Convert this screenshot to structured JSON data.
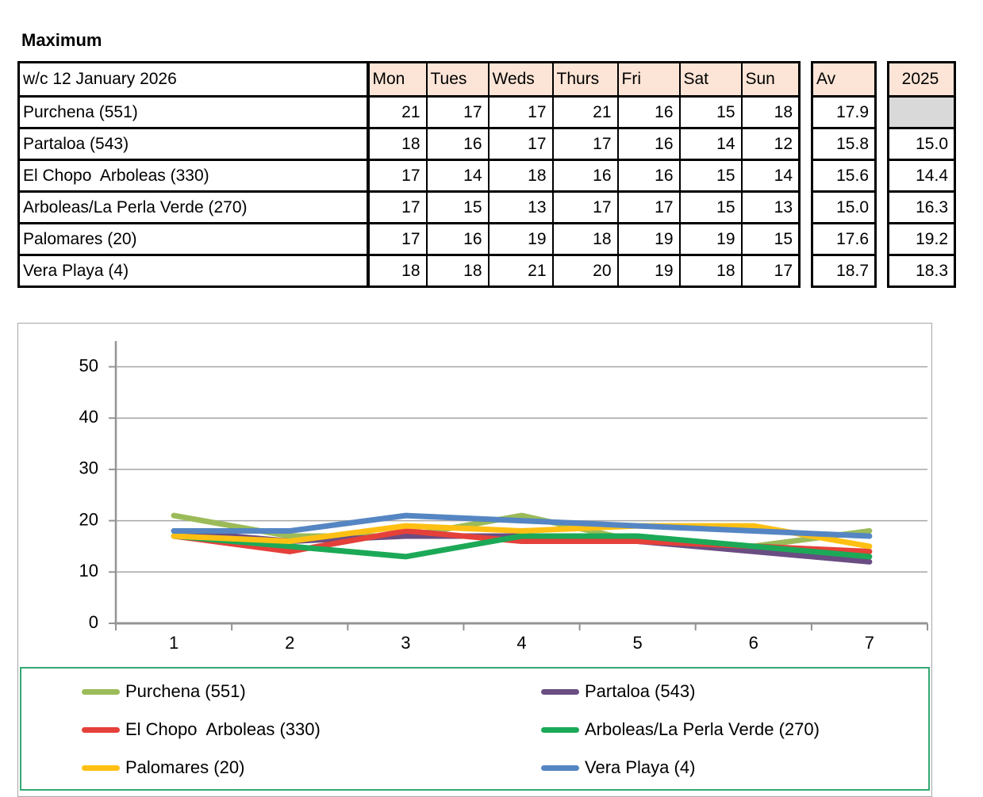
{
  "title": "Maximum",
  "table": {
    "week_label": "w/c 12 January 2026",
    "day_headers": [
      "Mon",
      "Tues",
      "Weds",
      "Thurs",
      "Fri",
      "Sat",
      "Sun"
    ],
    "av_header": "Av",
    "year_header": "2025",
    "rows": [
      {
        "name": "Purchena (551)",
        "values": [
          21,
          17,
          17,
          21,
          16,
          15,
          18
        ],
        "av": "17.9",
        "prev": ""
      },
      {
        "name": "Partaloa (543)",
        "values": [
          18,
          16,
          17,
          17,
          16,
          14,
          12
        ],
        "av": "15.8",
        "prev": "15.0"
      },
      {
        "name": "El Chopo  Arboleas (330)",
        "values": [
          17,
          14,
          18,
          16,
          16,
          15,
          14
        ],
        "av": "15.6",
        "prev": "14.4"
      },
      {
        "name": "Arboleas/La Perla Verde (270)",
        "values": [
          17,
          15,
          13,
          17,
          17,
          15,
          13
        ],
        "av": "15.0",
        "prev": "16.3"
      },
      {
        "name": "Palomares (20)",
        "values": [
          17,
          16,
          19,
          18,
          19,
          19,
          15
        ],
        "av": "17.6",
        "prev": "19.2"
      },
      {
        "name": "Vera Playa (4)",
        "values": [
          18,
          18,
          21,
          20,
          19,
          18,
          17
        ],
        "av": "18.7",
        "prev": "18.3"
      }
    ]
  },
  "chart_data": {
    "type": "line",
    "x": [
      1,
      2,
      3,
      4,
      5,
      6,
      7
    ],
    "series": [
      {
        "name": "Purchena (551)",
        "color": "#9BBB59",
        "values": [
          21,
          17,
          17,
          21,
          16,
          15,
          18
        ]
      },
      {
        "name": "Partaloa (543)",
        "color": "#6A4D82",
        "values": [
          18,
          16,
          17,
          17,
          16,
          14,
          12
        ]
      },
      {
        "name": "El Chopo  Arboleas (330)",
        "color": "#E5403A",
        "values": [
          17,
          14,
          18,
          16,
          16,
          15,
          14
        ]
      },
      {
        "name": "Arboleas/La Perla Verde (270)",
        "color": "#1CA957",
        "values": [
          17,
          15,
          13,
          17,
          17,
          15,
          13
        ]
      },
      {
        "name": "Palomares (20)",
        "color": "#FFC013",
        "values": [
          17,
          16,
          19,
          18,
          19,
          19,
          15
        ]
      },
      {
        "name": "Vera Playa (4)",
        "color": "#5586C3",
        "values": [
          18,
          18,
          21,
          20,
          19,
          18,
          17
        ]
      }
    ],
    "yticks": [
      0,
      10,
      20,
      30,
      40,
      50
    ],
    "ylim": [
      0,
      55
    ],
    "xlabel": "",
    "ylabel": "",
    "grid": true,
    "legend_position": "bottom"
  },
  "colors": {
    "header_fill": "#FCE4D6",
    "blank_fill": "#D9D9D9",
    "table_border": "#000000",
    "chart_border": "#A6A6A6",
    "gridline": "#A6A6A6",
    "axis": "#949494",
    "legend_border": "#34A873"
  }
}
